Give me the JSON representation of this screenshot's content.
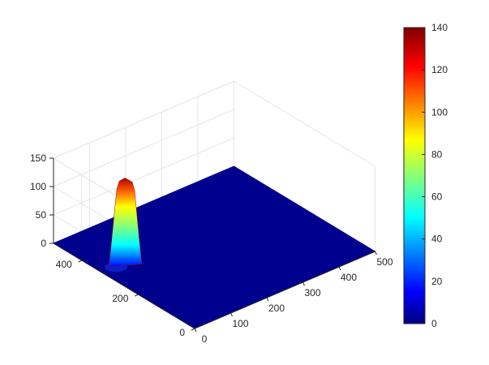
{
  "chart_data": {
    "type": "surface",
    "title": "",
    "xlabel": "",
    "ylabel": "",
    "zlabel": "",
    "x_axis": {
      "range": [
        0,
        500
      ],
      "ticks": [
        0,
        100,
        200,
        300,
        400,
        500
      ]
    },
    "y_axis": {
      "range": [
        0,
        500
      ],
      "ticks": [
        0,
        200,
        400
      ]
    },
    "z_axis": {
      "range": [
        0,
        150
      ],
      "ticks": [
        0,
        50,
        100,
        150
      ]
    },
    "colorbar": {
      "range": [
        0,
        140
      ],
      "ticks": [
        0,
        20,
        40,
        60,
        80,
        100,
        120,
        140
      ],
      "colormap": "jet"
    },
    "peak": {
      "x": 75,
      "y": 340,
      "height": 140,
      "base": 0
    },
    "grid": true
  },
  "axes": {
    "x_tick_labels": [
      "0",
      "100",
      "200",
      "300",
      "400",
      "500"
    ],
    "y_tick_labels": [
      "0",
      "200",
      "400"
    ],
    "z_tick_labels": [
      "0",
      "50",
      "100",
      "150"
    ],
    "colorbar_tick_labels": [
      "0",
      "20",
      "40",
      "60",
      "80",
      "100",
      "120",
      "140"
    ]
  },
  "colors": {
    "floor": "#00008f",
    "grid": "#e6e6e6",
    "axis": "#262626",
    "jet": [
      "#00007f",
      "#0000ff",
      "#007fff",
      "#00ffff",
      "#7fff7f",
      "#ffff00",
      "#ff7f00",
      "#ff0000",
      "#7f0000"
    ]
  }
}
